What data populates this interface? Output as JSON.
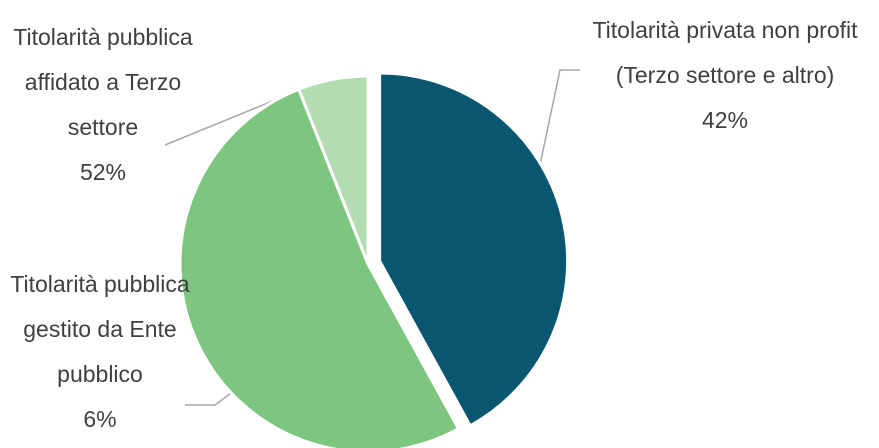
{
  "chart_data": {
    "type": "pie",
    "categories": [
      "Titolarità privata non profit (Terzo settore e altro)",
      "Titolarità pubblica affidato a Terzo settore",
      "Titolarità pubblica gestito da Ente pubblico"
    ],
    "values": [
      42,
      52,
      6
    ],
    "value_labels": [
      "42%",
      "52%",
      "6%"
    ],
    "colors": [
      "#08566f",
      "#7dc67f",
      "#b3dcb3"
    ]
  }
}
